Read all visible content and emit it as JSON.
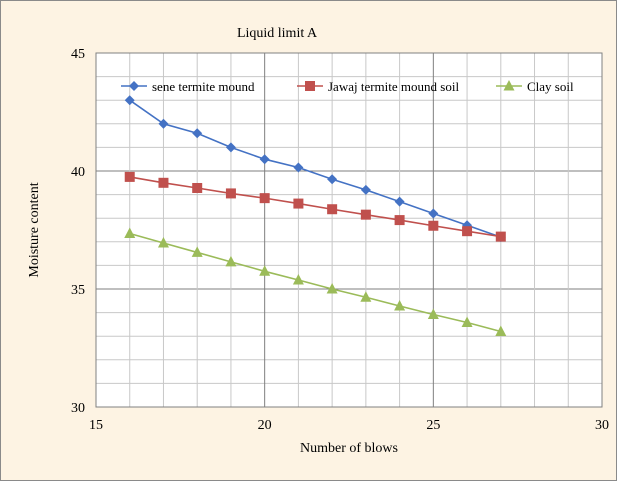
{
  "chart_data": {
    "type": "line",
    "title": "Liquid limit A",
    "xlabel": "Number of blows",
    "ylabel": "Moisture content",
    "xlim": [
      15,
      30
    ],
    "ylim": [
      30,
      45
    ],
    "xticks": [
      "15",
      "20",
      "25",
      "30"
    ],
    "yticks": [
      "30",
      "35",
      "40",
      "45"
    ],
    "grid": true,
    "legend_position": "top",
    "x": [
      16,
      17,
      18,
      19,
      20,
      21,
      22,
      23,
      24,
      25,
      26,
      27
    ],
    "series": [
      {
        "name": "sene termite mound",
        "color": "#4472c4",
        "marker": "diamond",
        "values": [
          43.0,
          42.0,
          41.6,
          41.0,
          40.5,
          40.15,
          39.65,
          39.2,
          38.7,
          38.2,
          37.7,
          37.2
        ]
      },
      {
        "name": "Jawaj termite mound soil",
        "color": "#c0504d",
        "marker": "square",
        "values": [
          39.75,
          39.5,
          39.28,
          39.05,
          38.85,
          38.62,
          38.38,
          38.15,
          37.92,
          37.68,
          37.45,
          37.22
        ]
      },
      {
        "name": "Clay soil",
        "color": "#9bbb59",
        "marker": "triangle",
        "values": [
          37.35,
          36.95,
          36.55,
          36.15,
          35.75,
          35.38,
          35.0,
          34.65,
          34.28,
          33.92,
          33.58,
          33.2
        ]
      }
    ]
  }
}
